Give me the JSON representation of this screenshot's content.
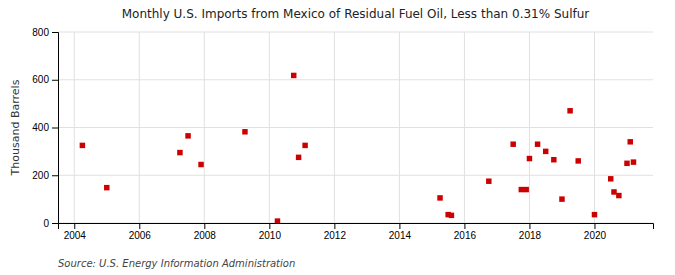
{
  "chart_data": {
    "type": "scatter",
    "title": "Monthly U.S. Imports from Mexico of Residual Fuel Oil, Less than 0.31% Sulfur",
    "ylabel": "Thousand Barrels",
    "source": "Source: U.S. Energy Information Administration",
    "color": "#cc0000",
    "marker": "square",
    "grid": true,
    "xlim": [
      2003.5,
      2021.8
    ],
    "ylim": [
      0,
      800
    ],
    "xticks": [
      2004,
      2006,
      2008,
      2010,
      2012,
      2014,
      2016,
      2018,
      2020
    ],
    "yticks": [
      0,
      200,
      400,
      600,
      800
    ],
    "x": [
      2004.25,
      2005.0,
      2007.25,
      2007.5,
      2007.9,
      2009.25,
      2010.25,
      2010.75,
      2010.9,
      2011.1,
      2015.25,
      2015.5,
      2015.6,
      2016.75,
      2017.5,
      2017.75,
      2017.9,
      2018.0,
      2018.25,
      2018.5,
      2018.75,
      2019.0,
      2019.25,
      2019.5,
      2020.0,
      2020.5,
      2020.6,
      2020.75,
      2021.0,
      2021.1,
      2021.2
    ],
    "values": [
      325,
      148,
      295,
      365,
      245,
      382,
      8,
      618,
      275,
      325,
      105,
      35,
      32,
      175,
      330,
      140,
      140,
      270,
      330,
      300,
      265,
      100,
      470,
      260,
      35,
      185,
      130,
      115,
      250,
      340,
      255
    ]
  }
}
